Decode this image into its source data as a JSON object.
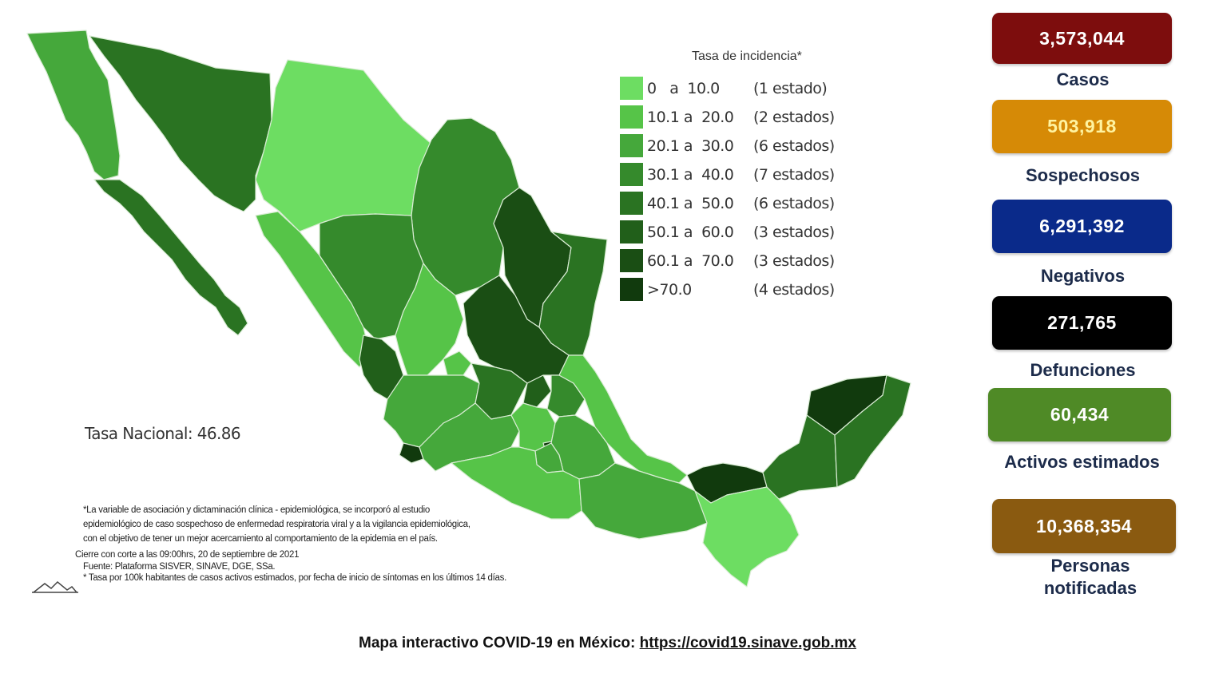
{
  "legend": {
    "title": "Tasa de incidencia*",
    "rows": [
      {
        "range": "0   a  10.0",
        "count": "(1 estado)",
        "color": "#6ddd62"
      },
      {
        "range": "10.1 a  20.0",
        "count": "(2 estados)",
        "color": "#56c448"
      },
      {
        "range": "20.1 a  30.0",
        "count": "(6 estados)",
        "color": "#45a83b"
      },
      {
        "range": "30.1 a  40.0",
        "count": "(7 estados)",
        "color": "#358a2c"
      },
      {
        "range": "40.1 a  50.0",
        "count": "(6 estados)",
        "color": "#2a7322"
      },
      {
        "range": "50.1 a  60.0",
        "count": "(3 estados)",
        "color": "#215f1a"
      },
      {
        "range": "60.1 a  70.0",
        "count": "(3 estados)",
        "color": "#1a4e14"
      },
      {
        "range": ">70.0",
        "count": "(4 estados)",
        "color": "#113a0d"
      }
    ]
  },
  "tasa_nacional": "Tasa Nacional: 46.86",
  "notes": {
    "line1": "*La variable de asociación y dictaminación clínica - epidemiológica, se incorporó al estudio",
    "line2": "epidemiológico de caso sospechoso de enfermedad respiratoria viral y a la vigilancia epidemiológica,",
    "line3": "con el objetivo de tener un mejor acercamiento al comportamiento de la epidemia en el país.",
    "cierre": "Cierre con corte a las 09:00hrs, 20 de septiembre de 2021",
    "fuente": "Fuente: Plataforma SISVER, SINAVE, DGE, SSa.",
    "tasa": "* Tasa por 100k habitantes de casos activos estimados, por fecha de inicio de síntomas en los últimos 14 días."
  },
  "stats": [
    {
      "value": "3,573,044",
      "label": "Casos",
      "bg": "#7d0d0d",
      "fg": "#ffffff"
    },
    {
      "value": "503,918",
      "label": "Sospechosos",
      "bg": "#d68a06",
      "fg": "#fff3a0"
    },
    {
      "value": "6,291,392",
      "label": "Negativos",
      "bg": "#0a2a8a",
      "fg": "#ffffff"
    },
    {
      "value": "271,765",
      "label": "Defunciones",
      "bg": "#000000",
      "fg": "#ffffff"
    },
    {
      "value": "60,434",
      "label": "Activos estimados",
      "bg": "#4f8a26",
      "fg": "#ffffff"
    },
    {
      "value": "10,368,354",
      "label": "Personas notificadas",
      "bg": "#8a5a10",
      "fg": "#ffffff"
    }
  ],
  "footer": {
    "text": "Mapa interactivo COVID-19 en México: ",
    "link": "https://covid19.sinave.gob.mx"
  }
}
